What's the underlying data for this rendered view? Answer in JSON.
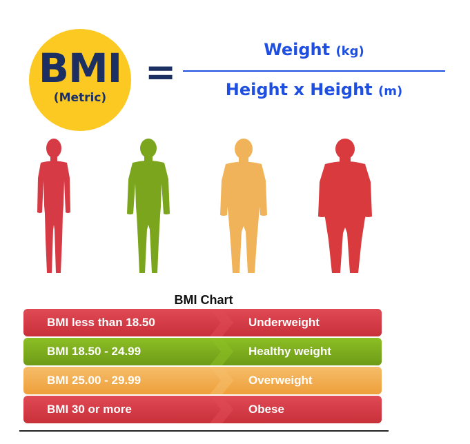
{
  "formula": {
    "badge_main": "BMI",
    "badge_sub": "(Metric)",
    "equals": "=",
    "numerator": "Weight",
    "numerator_unit": "(kg)",
    "denominator": "Height x Height",
    "denominator_unit": "(m)"
  },
  "figures": [
    {
      "name": "underweight",
      "color": "#d63a44"
    },
    {
      "name": "healthy",
      "color": "#7aa51c"
    },
    {
      "name": "overweight",
      "color": "#f0b35a"
    },
    {
      "name": "obese",
      "color": "#d83a3e"
    }
  ],
  "chart": {
    "title": "BMI Chart",
    "rows": [
      {
        "range": "BMI less than 18.50",
        "category": "Underweight",
        "color": "#c8303a",
        "accent": "#e04a54"
      },
      {
        "range": "BMI 18.50 - 24.99",
        "category": "Healthy weight",
        "color": "#6e9a17",
        "accent": "#8cbf25"
      },
      {
        "range": "BMI 25.00 - 29.99",
        "category": "Overweight",
        "color": "#ee9f3a",
        "accent": "#f6bd6a"
      },
      {
        "range": "BMI 30 or more",
        "category": "Obese",
        "color": "#c8303a",
        "accent": "#e04a54"
      }
    ]
  }
}
